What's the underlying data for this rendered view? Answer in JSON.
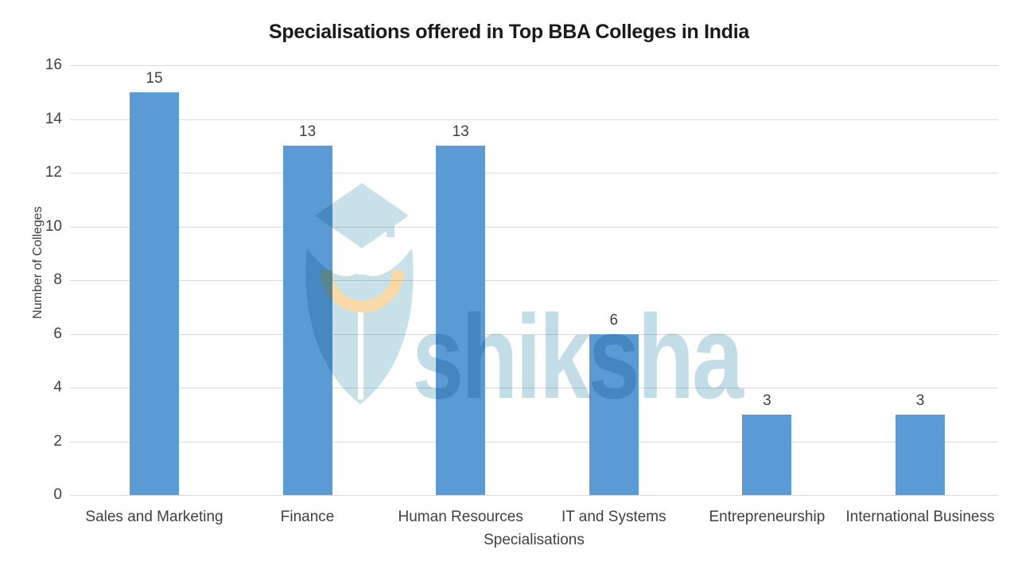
{
  "title": "Specialisations offered in Top BBA Colleges in India",
  "watermark": {
    "brand": "shiksha"
  },
  "colors": {
    "bar": "#5B9BD5",
    "gridline": "#D9D9D9",
    "axis_text": "#404040",
    "title_text": "#1a1a1a",
    "watermark_blue": "#C8E0E8",
    "watermark_text_blue": "#C3DDE6",
    "watermark_orange": "#F9D9A8"
  },
  "chart_data": {
    "type": "bar",
    "title": "Specialisations offered in Top BBA Colleges in India",
    "categories": [
      "Sales and Marketing",
      "Finance",
      "Human Resources",
      "IT and Systems",
      "Entrepreneurship",
      "International Business"
    ],
    "values": [
      15,
      13,
      13,
      6,
      3,
      3
    ],
    "xlabel": "Specialisations",
    "ylabel": "Number of Colleges",
    "ylim": [
      0,
      16
    ],
    "yticks": [
      0,
      2,
      4,
      6,
      8,
      10,
      12,
      14,
      16
    ],
    "grid": "horizontal",
    "legend": "none",
    "data_labels": true
  }
}
